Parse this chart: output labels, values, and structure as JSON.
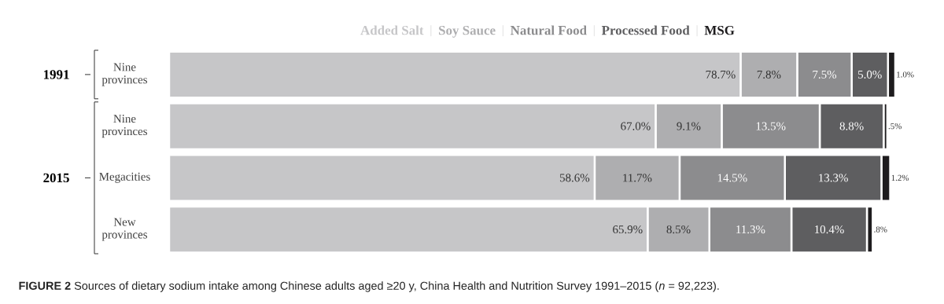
{
  "chart_data": {
    "type": "bar",
    "orientation": "horizontal",
    "stacked": true,
    "legend": "top",
    "categories": [
      "Nine provinces",
      "Nine provinces",
      "Megacities",
      "New provinces"
    ],
    "series": [
      {
        "name": "Added Salt",
        "color": "#c6c6c8",
        "values": [
          78.7,
          67.0,
          58.6,
          65.9
        ],
        "value_labels": [
          "78.7%",
          "67.0%",
          "58.6%",
          "65.9%"
        ]
      },
      {
        "name": "Soy Sauce",
        "color": "#aeaeb0",
        "values": [
          7.8,
          9.1,
          11.7,
          8.5
        ],
        "value_labels": [
          "7.8%",
          "9.1%",
          "11.7%",
          "8.5%"
        ]
      },
      {
        "name": "Natural Food",
        "color": "#8c8c8e",
        "values": [
          7.5,
          13.5,
          14.5,
          11.3
        ],
        "value_labels": [
          "7.5%",
          "13.5%",
          "14.5%",
          "11.3%"
        ]
      },
      {
        "name": "Processed Food",
        "color": "#5e5e60",
        "values": [
          5.0,
          8.8,
          13.3,
          10.4
        ],
        "value_labels": [
          "5.0%",
          "8.8%",
          "13.3%",
          "10.4%"
        ]
      },
      {
        "name": "MSG",
        "color": "#1e1c1e",
        "values": [
          1.0,
          0.5,
          1.2,
          0.8
        ],
        "value_labels": [
          "1.0%",
          ".5%",
          "1.2%",
          ".8%"
        ]
      }
    ],
    "xlim": [
      0,
      100
    ],
    "annotations": [
      "1991",
      "2015",
      "**FIGURE 2**   Sources of dietary sodium intake among Chinese adults aged ≥20 y, China Health and Nutrition Survey 1991–2015 (*n* = 92,223)."
    ]
  }
}
